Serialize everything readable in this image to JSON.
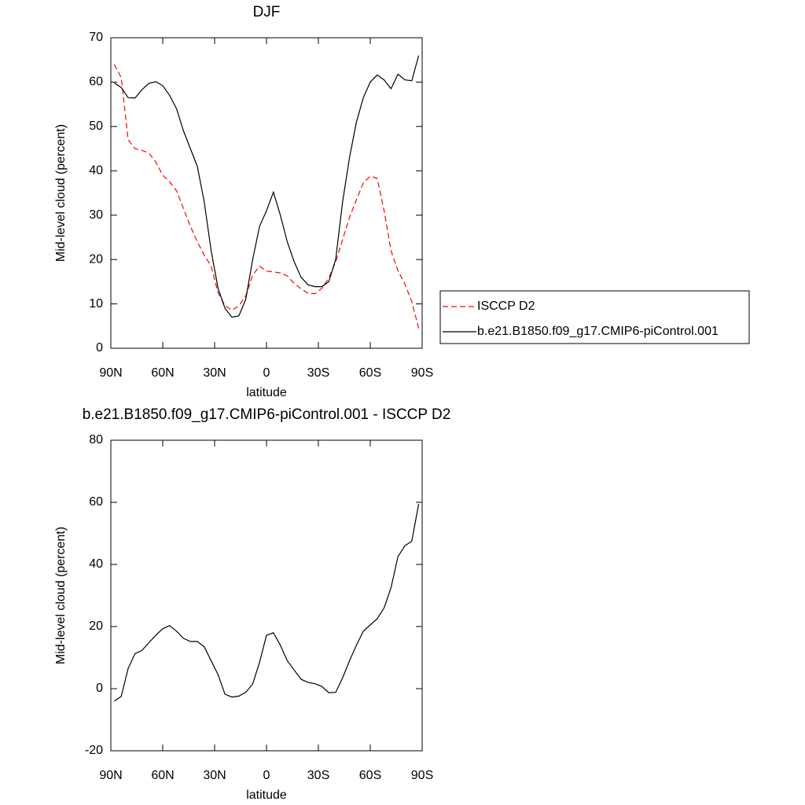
{
  "chart_data": [
    {
      "type": "line",
      "title": "DJF",
      "xlabel": "latitude",
      "ylabel": "Mid-level cloud (percent)",
      "x": [
        88,
        84,
        80,
        76,
        72,
        68,
        64,
        60,
        56,
        52,
        48,
        44,
        40,
        36,
        32,
        28,
        24,
        20,
        16,
        12,
        8,
        4,
        0,
        -4,
        -8,
        -12,
        -16,
        -20,
        -24,
        -28,
        -32,
        -36,
        -40,
        -44,
        -48,
        -52,
        -56,
        -60,
        -64,
        -68,
        -72,
        -76,
        -80,
        -84,
        -88
      ],
      "series": [
        {
          "name": "ISCCP D2",
          "color": "#ff0000",
          "dash": true,
          "values": [
            64,
            61,
            47,
            45,
            44.6,
            44,
            42,
            39,
            37.5,
            35.5,
            31.5,
            27.5,
            24,
            21,
            18.5,
            12.5,
            9.6,
            8.6,
            9.5,
            11.8,
            16.5,
            18.5,
            17.4,
            17.2,
            17,
            16.3,
            14.6,
            13.4,
            12.4,
            12.3,
            13.5,
            15.8,
            19.5,
            24.5,
            29.5,
            33.5,
            37.3,
            38.8,
            38.3,
            31,
            22,
            17.5,
            14.5,
            10.5,
            4.5
          ]
        },
        {
          "name": "b.e21.B1850.f09_g17.CMIP6-piControl.001",
          "color": "#000000",
          "dash": false,
          "values": [
            59.8,
            58.8,
            56.5,
            56.4,
            58.3,
            59.7,
            60.1,
            59.2,
            57,
            54,
            49,
            45,
            41,
            33,
            22,
            13.5,
            9,
            7,
            7.3,
            11,
            20,
            27.5,
            31,
            35.2,
            30,
            24,
            19.5,
            16,
            14.3,
            13.9,
            13.9,
            15,
            20,
            33,
            43,
            51,
            56.5,
            60,
            61.6,
            60.5,
            58.5,
            61.8,
            60.5,
            60.3,
            66
          ]
        }
      ],
      "xlim": [
        90,
        -90
      ],
      "xticks": [
        {
          "value": 90,
          "label": "90N"
        },
        {
          "value": 60,
          "label": "60N"
        },
        {
          "value": 30,
          "label": "30N"
        },
        0,
        {
          "value": -30,
          "label": "30S"
        },
        {
          "value": -60,
          "label": "60S"
        },
        {
          "value": -90,
          "label": "90S"
        }
      ],
      "ylim": [
        0,
        70
      ],
      "yticks": [
        0,
        10,
        20,
        30,
        40,
        50,
        60,
        70
      ],
      "legend": "right"
    },
    {
      "type": "line",
      "title": "b.e21.B1850.f09_g17.CMIP6-piControl.001 - ISCCP D2",
      "xlabel": "latitude",
      "ylabel": "Mid-level cloud (percent)",
      "x": [
        88,
        84,
        80,
        76,
        72,
        68,
        64,
        60,
        56,
        52,
        48,
        44,
        40,
        36,
        32,
        28,
        24,
        20,
        16,
        12,
        8,
        4,
        0,
        -4,
        -8,
        -12,
        -16,
        -20,
        -24,
        -28,
        -32,
        -36,
        -40,
        -44,
        -48,
        -52,
        -56,
        -60,
        -64,
        -68,
        -72,
        -76,
        -80,
        -84,
        -88
      ],
      "series": [
        {
          "color": "#000000",
          "dash": false,
          "values": [
            -4,
            -2.5,
            6.5,
            11.3,
            12.3,
            14.8,
            17.2,
            19.3,
            20.3,
            18.5,
            16.2,
            15.2,
            15.2,
            13.5,
            9,
            4.5,
            -1.8,
            -2.7,
            -2.4,
            -1.2,
            1.5,
            8.5,
            17.2,
            18,
            14,
            9,
            6,
            3,
            2,
            1.6,
            0.7,
            -1.3,
            -1.2,
            3.5,
            9,
            14,
            18.5,
            20.5,
            22.5,
            26,
            32.5,
            42.5,
            46,
            47.5,
            59.5
          ]
        }
      ],
      "xlim": [
        90,
        -90
      ],
      "xticks": [
        {
          "value": 90,
          "label": "90N"
        },
        {
          "value": 60,
          "label": "60N"
        },
        {
          "value": 30,
          "label": "30N"
        },
        0,
        {
          "value": -30,
          "label": "30S"
        },
        {
          "value": -60,
          "label": "60S"
        },
        {
          "value": -90,
          "label": "90S"
        }
      ],
      "ylim": [
        -20,
        80
      ],
      "yticks": [
        -20,
        0,
        20,
        40,
        60,
        80
      ]
    }
  ]
}
